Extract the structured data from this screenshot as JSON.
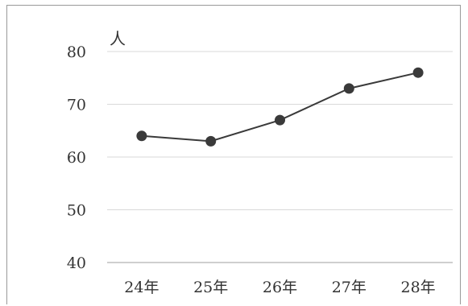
{
  "chart_data": {
    "type": "line",
    "categories": [
      "24年",
      "25年",
      "26年",
      "27年",
      "28年"
    ],
    "series": [
      {
        "values": [
          64,
          63,
          67,
          73,
          76
        ]
      }
    ],
    "ylabel": "人",
    "ylim": [
      40,
      80
    ],
    "yticks": [
      40,
      50,
      60,
      70,
      80
    ],
    "grid": true,
    "colors": {
      "line": "#3a3a3a",
      "marker": "#3a3a3a",
      "grid": "#d9d9d9",
      "axis": "#bfbfbf"
    }
  }
}
